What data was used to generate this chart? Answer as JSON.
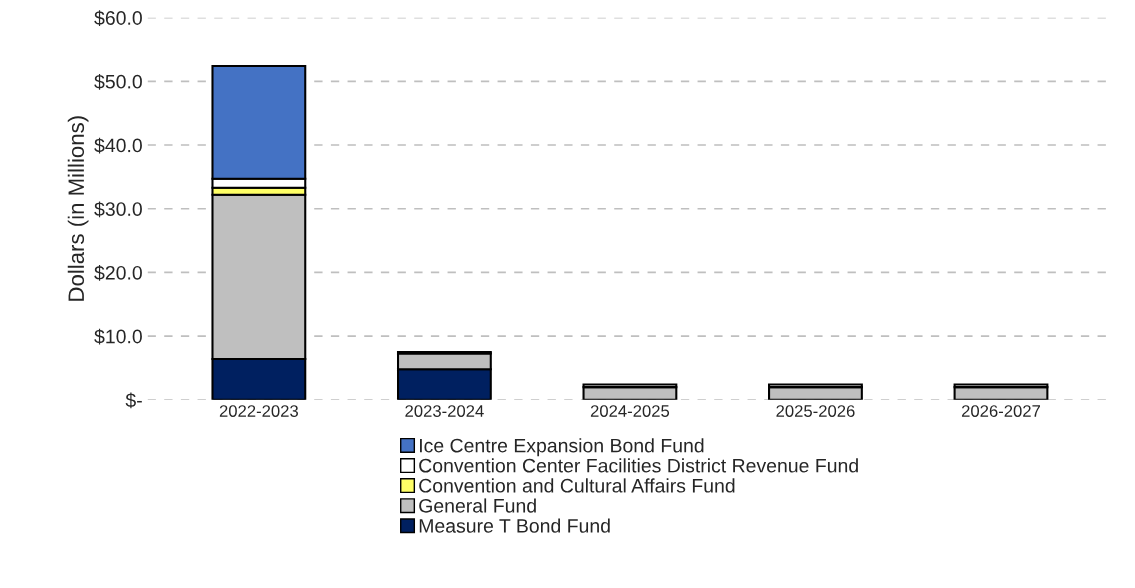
{
  "chart_data": {
    "type": "bar",
    "stacked": true,
    "ylabel": "Dollars (in Millions)",
    "categories": [
      "2022-2023",
      "2023-2024",
      "2024-2025",
      "2025-2026",
      "2026-2027"
    ],
    "series": [
      {
        "name": "Measure T Bond Fund",
        "color": "#002060",
        "values": [
          6.4,
          4.8,
          null,
          null,
          null
        ]
      },
      {
        "name": "General Fund",
        "color": "#bfbfbf",
        "values": [
          25.8,
          2.5,
          2.0,
          2.0,
          2.0
        ]
      },
      {
        "name": "Convention and Cultural Affairs Fund",
        "color": "#ffff66",
        "values": [
          1.1,
          null,
          null,
          null,
          null
        ]
      },
      {
        "name": "Convention Center Facilities District Revenue Fund",
        "color": "#ffffff",
        "values": [
          1.4,
          0.2,
          0.4,
          0.4,
          0.4
        ]
      },
      {
        "name": "Ice Centre Expansion Bond Fund",
        "color": "#4472c4",
        "values": [
          17.7,
          null,
          null,
          null,
          null
        ]
      }
    ],
    "ylim": [
      0,
      60
    ],
    "yticks": [
      {
        "value": 0,
        "label": "$-"
      },
      {
        "value": 10,
        "label": "$10.0"
      },
      {
        "value": 20,
        "label": "$20.0"
      },
      {
        "value": 30,
        "label": "$30.0"
      },
      {
        "value": 40,
        "label": "$40.0"
      },
      {
        "value": 50,
        "label": "$50.0"
      },
      {
        "value": 60,
        "label": "$60.0"
      }
    ],
    "grid": "y",
    "legend": "bottom"
  }
}
